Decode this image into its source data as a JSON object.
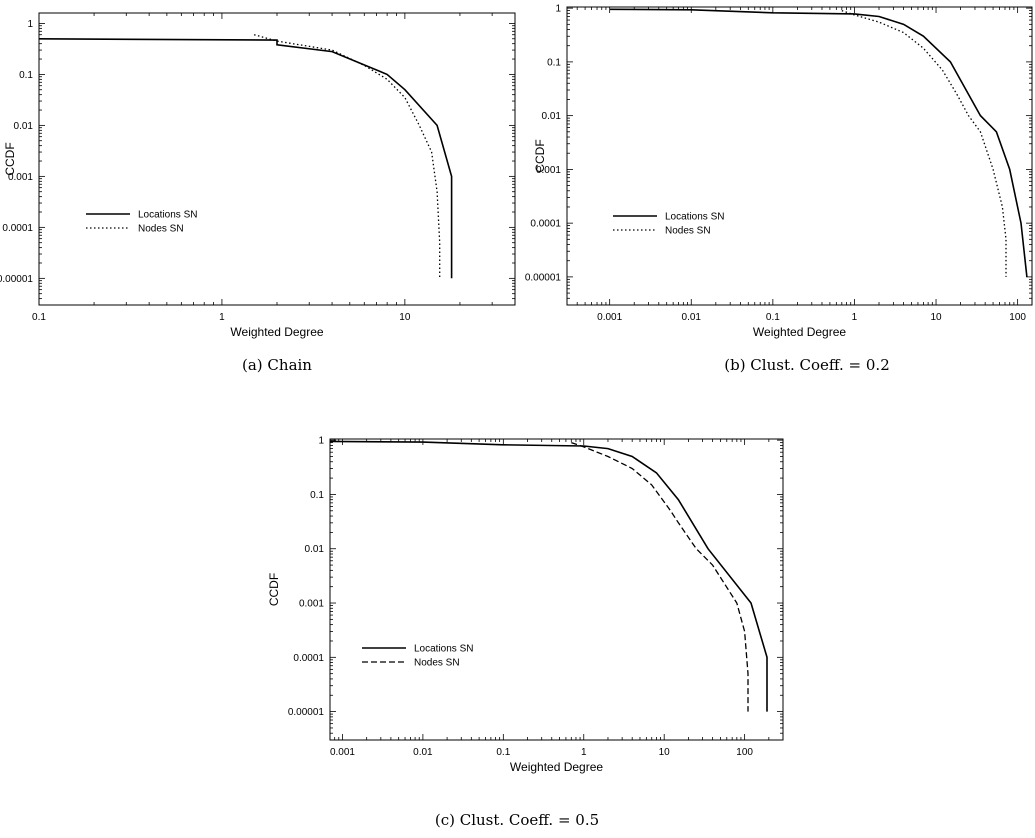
{
  "chart_data": [
    {
      "type": "line",
      "caption": "(a) Chain",
      "xlabel": "Weighted Degree",
      "ylabel": "CCDF",
      "xscale": "log",
      "yscale": "log",
      "xlim": [
        0.1,
        40
      ],
      "ylim": [
        3e-06,
        1.6
      ],
      "xticks": [
        {
          "v": 0.1,
          "label": "0.1"
        },
        {
          "v": 1,
          "label": "1"
        },
        {
          "v": 10,
          "label": "10"
        }
      ],
      "yticks": [
        {
          "v": 1,
          "label": "1"
        },
        {
          "v": 0.1,
          "label": "0.1"
        },
        {
          "v": 0.01,
          "label": "0.01"
        },
        {
          "v": 0.001,
          "label": "0.001"
        },
        {
          "v": 0.0001,
          "label": "0.0001"
        },
        {
          "v": 1e-05,
          "label": "0.00001"
        }
      ],
      "legend_position": "left-middle",
      "series": [
        {
          "name": "Locations SN",
          "dash": "solid",
          "x": [
            0.1,
            2,
            2,
            4,
            8,
            10,
            15,
            18,
            18
          ],
          "y": [
            0.5,
            0.47,
            0.38,
            0.28,
            0.1,
            0.05,
            0.01,
            0.001,
            1e-05
          ]
        },
        {
          "name": "Nodes SN",
          "dash": "dotted",
          "x": [
            1.5,
            2,
            4,
            6,
            8,
            10,
            12,
            14,
            15,
            15.5,
            15.5
          ],
          "y": [
            0.6,
            0.45,
            0.3,
            0.15,
            0.08,
            0.035,
            0.01,
            0.003,
            0.0005,
            5e-05,
            1e-05
          ]
        }
      ]
    },
    {
      "type": "line",
      "caption": "(b) Clust. Coeff. = 0.2",
      "xlabel": "Weighted Degree",
      "ylabel": "CCDF",
      "xscale": "log",
      "yscale": "log",
      "xlim": [
        0.0003,
        150
      ],
      "ylim": [
        3e-06,
        1.05
      ],
      "xticks": [
        {
          "v": 0.001,
          "label": "0.001"
        },
        {
          "v": 0.01,
          "label": "0.01"
        },
        {
          "v": 0.1,
          "label": "0.1"
        },
        {
          "v": 1,
          "label": "1"
        },
        {
          "v": 10,
          "label": "10"
        },
        {
          "v": 100,
          "label": "100"
        }
      ],
      "yticks": [
        {
          "v": 1,
          "label": "1"
        },
        {
          "v": 0.1,
          "label": "0.1"
        },
        {
          "v": 0.01,
          "label": "0.01"
        },
        {
          "v": 0.001,
          "label": "0.001"
        },
        {
          "v": 0.0001,
          "label": "0.0001"
        },
        {
          "v": 1e-05,
          "label": "0.00001"
        }
      ],
      "legend_position": "left-bottom",
      "series": [
        {
          "name": "Locations SN",
          "dash": "solid",
          "x": [
            0.001,
            0.01,
            0.1,
            1,
            2,
            4,
            7,
            15,
            35,
            55,
            80,
            110,
            130,
            130
          ],
          "y": [
            0.95,
            0.93,
            0.82,
            0.78,
            0.7,
            0.5,
            0.3,
            0.1,
            0.01,
            0.005,
            0.001,
            0.0001,
            1e-05,
            1e-05
          ]
        },
        {
          "name": "Nodes SN",
          "dash": "dotted",
          "x": [
            0.7,
            1,
            2,
            4,
            7,
            12,
            18,
            25,
            35,
            50,
            65,
            72,
            72
          ],
          "y": [
            0.9,
            0.75,
            0.55,
            0.35,
            0.18,
            0.07,
            0.025,
            0.01,
            0.005,
            0.001,
            0.0002,
            5e-05,
            1e-05
          ]
        }
      ]
    },
    {
      "type": "line",
      "caption": "(c) Clust. Coeff. = 0.5",
      "xlabel": "Weighted Degree",
      "ylabel": "CCDF",
      "xscale": "log",
      "yscale": "log",
      "xlim": [
        0.0007,
        300
      ],
      "ylim": [
        3e-06,
        1.05
      ],
      "xticks": [
        {
          "v": 0.001,
          "label": "0.001"
        },
        {
          "v": 0.01,
          "label": "0.01"
        },
        {
          "v": 0.1,
          "label": "0.1"
        },
        {
          "v": 1,
          "label": "1"
        },
        {
          "v": 10,
          "label": "10"
        },
        {
          "v": 100,
          "label": "100"
        }
      ],
      "yticks": [
        {
          "v": 1,
          "label": "1"
        },
        {
          "v": 0.1,
          "label": "0.1"
        },
        {
          "v": 0.01,
          "label": "0.01"
        },
        {
          "v": 0.001,
          "label": "0.001"
        },
        {
          "v": 0.0001,
          "label": "0.0001"
        },
        {
          "v": 1e-05,
          "label": "0.00001"
        }
      ],
      "legend_position": "left-middle",
      "series": [
        {
          "name": "Locations SN",
          "dash": "solid",
          "x": [
            0.0007,
            0.01,
            0.1,
            1,
            2,
            4,
            8,
            15,
            35,
            120,
            190,
            190
          ],
          "y": [
            0.95,
            0.92,
            0.82,
            0.78,
            0.7,
            0.5,
            0.25,
            0.08,
            0.01,
            0.001,
            0.0001,
            1e-05
          ]
        },
        {
          "name": "Nodes SN",
          "dash": "dashed",
          "x": [
            0.7,
            1,
            2,
            4,
            7,
            12,
            15,
            25,
            40,
            80,
            100,
            110,
            110
          ],
          "y": [
            0.9,
            0.75,
            0.5,
            0.3,
            0.15,
            0.05,
            0.03,
            0.01,
            0.005,
            0.001,
            0.0003,
            5e-05,
            1e-05
          ]
        }
      ]
    }
  ]
}
